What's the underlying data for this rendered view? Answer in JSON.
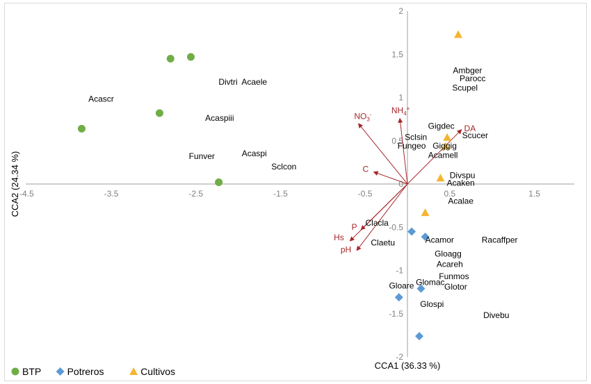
{
  "chart_data": {
    "type": "scatter",
    "subtype": "CCA biplot",
    "title": "",
    "xlabel": "CCA1 (36.33 %)",
    "ylabel": "CCA2 (24.34 %)",
    "xlim": [
      -4.5,
      2.0
    ],
    "ylim": [
      -2.0,
      2.0
    ],
    "xticks": [
      -4.5,
      -3.5,
      -2.5,
      -1.5,
      -0.5,
      0.5,
      1.5
    ],
    "xtick_labels": [
      "-4.5",
      "-3.5",
      "-2.5",
      "-1.5",
      "-0.5",
      "0.5",
      "1.5"
    ],
    "yticks": [
      2,
      1.5,
      1,
      0.5,
      0,
      -0.5,
      -1,
      -1.5,
      -2
    ],
    "ytick_labels": [
      "2",
      "1.5",
      "1",
      "0.5",
      "0",
      "-0.5",
      "-1",
      "-1.5",
      "-2"
    ],
    "grid": false,
    "legend_position": "bottom-left",
    "series": [
      {
        "name": "BTP",
        "marker": "circle",
        "color": "#70ad47",
        "points": [
          {
            "x": -2.8,
            "y": 1.45
          },
          {
            "x": -2.56,
            "y": 1.47
          },
          {
            "x": -2.93,
            "y": 0.82
          },
          {
            "x": -3.85,
            "y": 0.64
          },
          {
            "x": -2.23,
            "y": 0.02
          }
        ]
      },
      {
        "name": "Potreros",
        "marker": "diamond",
        "color": "#5b9bd5",
        "points": [
          {
            "x": 0.05,
            "y": -0.55
          },
          {
            "x": 0.21,
            "y": -0.61
          },
          {
            "x": -0.1,
            "y": -1.31
          },
          {
            "x": 0.16,
            "y": -1.21
          },
          {
            "x": 0.14,
            "y": -1.76
          }
        ]
      },
      {
        "name": "Cultivos",
        "marker": "triangle",
        "color": "#f4b531",
        "points": [
          {
            "x": 0.6,
            "y": 1.73
          },
          {
            "x": 0.47,
            "y": 0.54
          },
          {
            "x": 0.45,
            "y": 0.44
          },
          {
            "x": 0.39,
            "y": 0.07
          },
          {
            "x": 0.21,
            "y": -0.33
          }
        ]
      }
    ],
    "vectors": {
      "color": "#a6272a",
      "items": [
        {
          "name": "NO3-",
          "base": "NO",
          "sub": "3",
          "sup": "-",
          "x": -0.58,
          "y": 0.7,
          "lx": -0.63,
          "ly": 0.75
        },
        {
          "name": "NH4+",
          "base": "NH",
          "sub": "4",
          "sup": "+",
          "x": -0.09,
          "y": 0.76,
          "lx": -0.19,
          "ly": 0.82
        },
        {
          "name": "DA",
          "base": "DA",
          "sub": "",
          "sup": "",
          "x": 0.64,
          "y": 0.63,
          "lx": 0.67,
          "ly": 0.61
        },
        {
          "name": "C",
          "base": "C",
          "sub": "",
          "sup": "",
          "x": -0.4,
          "y": 0.14,
          "lx": -0.53,
          "ly": 0.14
        },
        {
          "name": "P",
          "base": "P",
          "sub": "",
          "sup": "",
          "x": -0.55,
          "y": -0.53,
          "lx": -0.66,
          "ly": -0.53
        },
        {
          "name": "Hs",
          "base": "Hs",
          "sub": "",
          "sup": "",
          "x": -0.68,
          "y": -0.66,
          "lx": -0.87,
          "ly": -0.65
        },
        {
          "name": "pH",
          "base": "pH",
          "sub": "",
          "sup": "",
          "x": -0.6,
          "y": -0.77,
          "lx": -0.79,
          "ly": -0.79
        }
      ]
    },
    "species_labels": [
      {
        "text": "Acascr",
        "x": -3.62,
        "y": 0.95
      },
      {
        "text": "Divtri",
        "x": -2.12,
        "y": 1.15
      },
      {
        "text": "Acaele",
        "x": -1.81,
        "y": 1.15
      },
      {
        "text": "Acaspiii",
        "x": -2.22,
        "y": 0.73
      },
      {
        "text": "Funver",
        "x": -2.43,
        "y": 0.29
      },
      {
        "text": "Acaspi",
        "x": -1.81,
        "y": 0.32
      },
      {
        "text": "Sclcon",
        "x": -1.46,
        "y": 0.17
      },
      {
        "text": "Ambger",
        "x": 0.71,
        "y": 1.28
      },
      {
        "text": "Parocc",
        "x": 0.77,
        "y": 1.19
      },
      {
        "text": "Scupel",
        "x": 0.68,
        "y": 1.08
      },
      {
        "text": "Gigdec",
        "x": 0.4,
        "y": 0.64
      },
      {
        "text": "Sclsin",
        "x": 0.1,
        "y": 0.51
      },
      {
        "text": "Fungeo",
        "x": 0.05,
        "y": 0.41
      },
      {
        "text": "Giggig",
        "x": 0.44,
        "y": 0.41
      },
      {
        "text": "Acamell",
        "x": 0.42,
        "y": 0.3
      },
      {
        "text": "Scucer",
        "x": 0.8,
        "y": 0.53
      },
      {
        "text": "Divspu",
        "x": 0.65,
        "y": 0.07
      },
      {
        "text": "Acaken",
        "x": 0.63,
        "y": -0.02
      },
      {
        "text": "Acalae",
        "x": 0.63,
        "y": -0.23
      },
      {
        "text": "Clacla",
        "x": -0.36,
        "y": -0.48
      },
      {
        "text": "Claetu",
        "x": -0.29,
        "y": -0.71
      },
      {
        "text": "Acamor",
        "x": 0.38,
        "y": -0.68
      },
      {
        "text": "Racaffper",
        "x": 1.09,
        "y": -0.68
      },
      {
        "text": "Gloagg",
        "x": 0.48,
        "y": -0.84
      },
      {
        "text": "Acareh",
        "x": 0.5,
        "y": -0.96
      },
      {
        "text": "Funmos",
        "x": 0.55,
        "y": -1.1
      },
      {
        "text": "Glotor",
        "x": 0.57,
        "y": -1.22
      },
      {
        "text": "Glomac",
        "x": 0.27,
        "y": -1.17
      },
      {
        "text": "Gloare",
        "x": -0.07,
        "y": -1.21
      },
      {
        "text": "Glospi",
        "x": 0.29,
        "y": -1.42
      },
      {
        "text": "Divebu",
        "x": 1.05,
        "y": -1.55
      }
    ]
  }
}
